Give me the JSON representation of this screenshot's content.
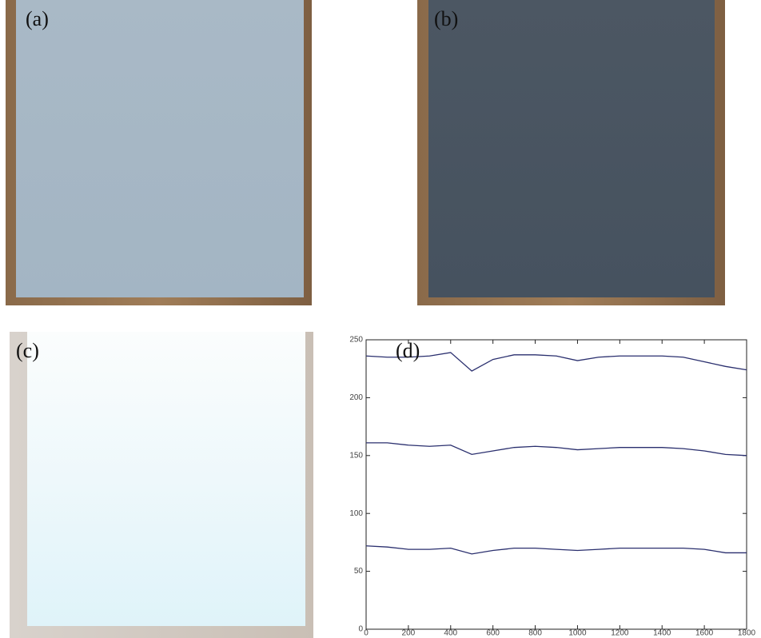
{
  "panels": [
    {
      "label": "(a)"
    },
    {
      "label": "(b)"
    },
    {
      "label": "(c)"
    }
  ],
  "chart_data": {
    "type": "line",
    "annotation": "(d)",
    "x": [
      0,
      100,
      200,
      300,
      400,
      500,
      600,
      700,
      800,
      900,
      1000,
      1100,
      1200,
      1300,
      1400,
      1500,
      1600,
      1700,
      1800
    ],
    "series": [
      {
        "color": "#2a2f6e",
        "values": [
          236,
          235,
          235,
          236,
          239,
          223,
          233,
          237,
          237,
          236,
          232,
          235,
          236,
          236,
          236,
          235,
          231,
          227,
          224
        ]
      },
      {
        "color": "#2a2f6e",
        "values": [
          161,
          161,
          159,
          158,
          159,
          151,
          154,
          157,
          158,
          157,
          155,
          156,
          157,
          157,
          157,
          156,
          154,
          151,
          150
        ]
      },
      {
        "color": "#2a2f6e",
        "values": [
          72,
          71,
          69,
          69,
          70,
          65,
          68,
          70,
          70,
          69,
          68,
          69,
          70,
          70,
          70,
          70,
          69,
          66,
          66
        ]
      }
    ],
    "xlim": [
      0,
      1800
    ],
    "xticks": [
      0,
      200,
      400,
      600,
      800,
      1000,
      1200,
      1400,
      1600,
      1800
    ],
    "ylim": [
      0,
      250
    ],
    "yticks": [
      0,
      50,
      100,
      150,
      200,
      250
    ],
    "grid": false
  }
}
